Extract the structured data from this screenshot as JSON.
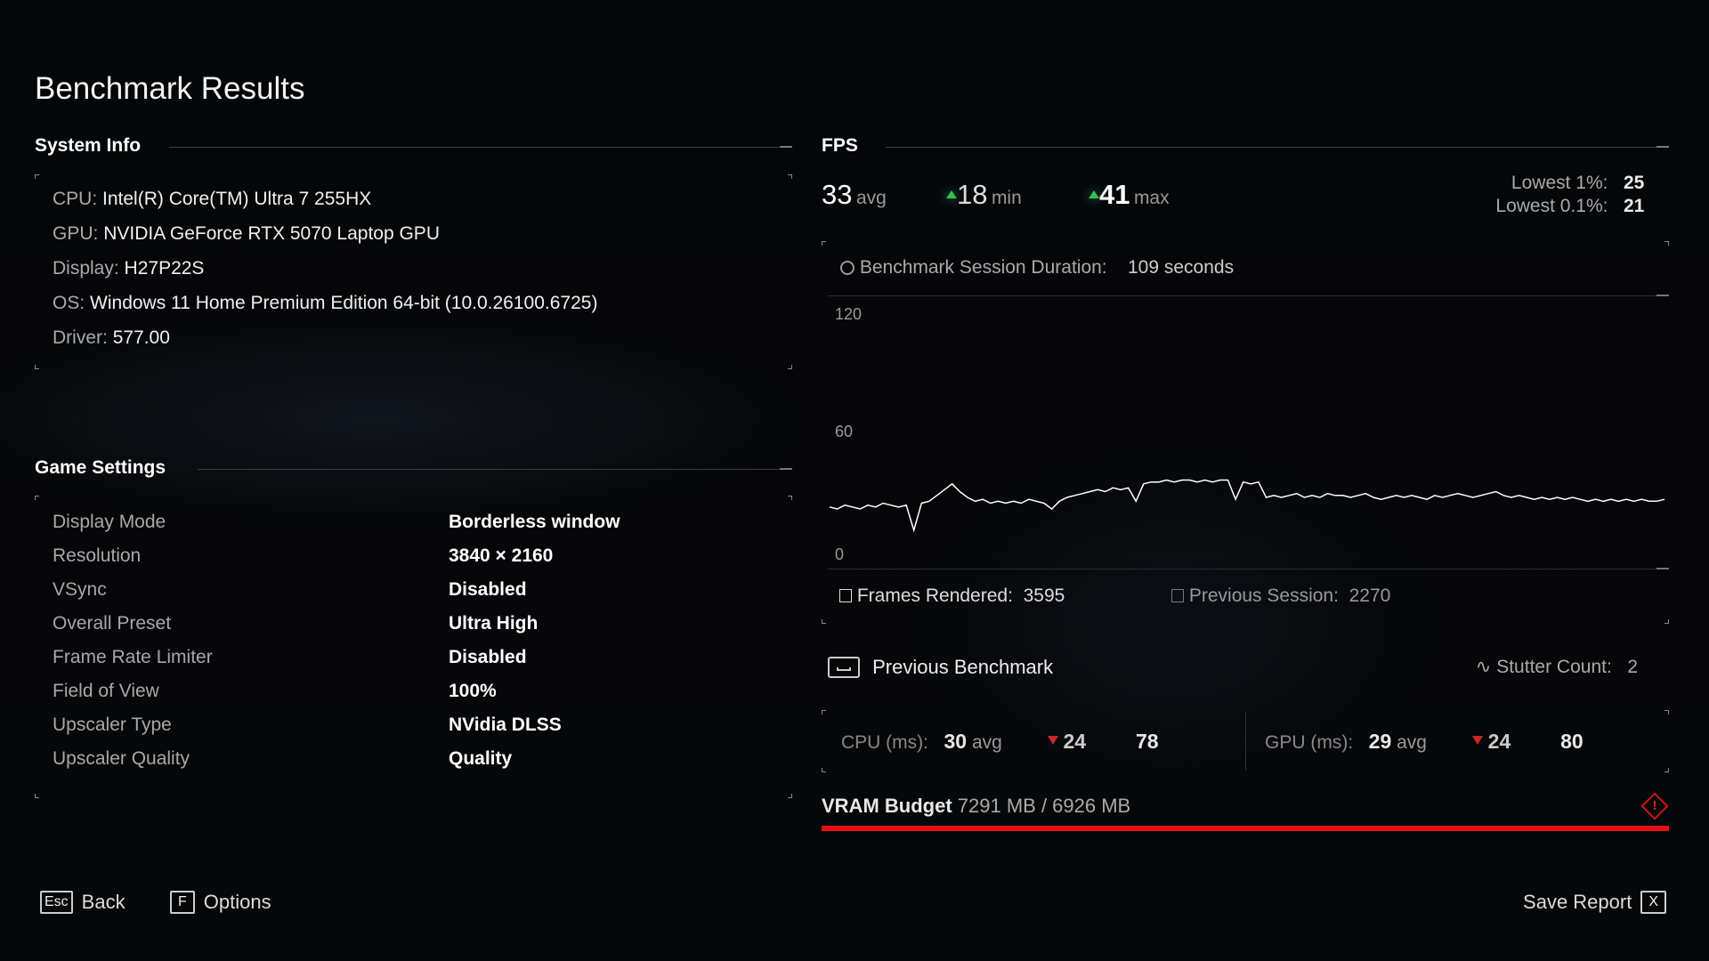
{
  "title": "Benchmark Results",
  "system_info": {
    "header": "System Info",
    "rows": [
      {
        "label": "CPU:",
        "value": "Intel(R) Core(TM) Ultra 7 255HX"
      },
      {
        "label": "GPU:",
        "value": "NVIDIA GeForce RTX 5070 Laptop GPU"
      },
      {
        "label": "Display:",
        "value": "H27P22S"
      },
      {
        "label": "OS:",
        "value": "Windows 11 Home Premium Edition 64-bit (10.0.26100.6725)"
      },
      {
        "label": "Driver:",
        "value": "577.00"
      }
    ]
  },
  "game_settings": {
    "header": "Game Settings",
    "rows": [
      {
        "label": "Display Mode",
        "value": "Borderless window"
      },
      {
        "label": "Resolution",
        "value": "3840 × 2160"
      },
      {
        "label": "VSync",
        "value": "Disabled"
      },
      {
        "label": "Overall Preset",
        "value": "Ultra High"
      },
      {
        "label": "Frame Rate Limiter",
        "value": "Disabled"
      },
      {
        "label": "Field of View",
        "value": "100%"
      },
      {
        "label": "Upscaler Type",
        "value": "NVidia DLSS"
      },
      {
        "label": "Upscaler Quality",
        "value": "Quality"
      }
    ]
  },
  "fps": {
    "header": "FPS",
    "avg": "33",
    "avg_label": "avg",
    "min": "18",
    "min_label": "min",
    "max": "41",
    "max_label": "max",
    "lowest1_label": "Lowest 1%:",
    "lowest1": "25",
    "lowest01_label": "Lowest 0.1%:",
    "lowest01": "21",
    "duration_label": "Benchmark Session Duration:",
    "duration": "109 seconds",
    "frames_label": "Frames Rendered:",
    "frames": "3595",
    "prev_label": "Previous Session:",
    "prev": "2270"
  },
  "chart_data": {
    "type": "line",
    "ylim": [
      0,
      120
    ],
    "yticks": [
      "120",
      "60",
      "0"
    ],
    "grid": false,
    "color": "#ffffff",
    "values": [
      25,
      24,
      26,
      25,
      24,
      26,
      25,
      27,
      26,
      25,
      26,
      13,
      27,
      28,
      31,
      34,
      37,
      33,
      30,
      28,
      29,
      27,
      28,
      27,
      28,
      27,
      29,
      28,
      27,
      24,
      28,
      30,
      31,
      32,
      33,
      34,
      33,
      35,
      34,
      35,
      28,
      37,
      38,
      38,
      39,
      38,
      39,
      39,
      38,
      39,
      38,
      39,
      39,
      29,
      38,
      37,
      38,
      30,
      31,
      30,
      31,
      32,
      30,
      31,
      30,
      32,
      31,
      31,
      30,
      31,
      32,
      30,
      29,
      30,
      31,
      30,
      31,
      30,
      29,
      31,
      30,
      31,
      32,
      31,
      30,
      31,
      32,
      33,
      31,
      30,
      31,
      30,
      29,
      30,
      29,
      30,
      29,
      30,
      29,
      28,
      29,
      28,
      29,
      28,
      29,
      28,
      29,
      28,
      28,
      29
    ]
  },
  "previous_benchmark": {
    "label": "Previous Benchmark",
    "stutter_label": "Stutter Count:",
    "stutter": "2"
  },
  "cpu": {
    "label": "CPU (ms):",
    "avg": "30",
    "avg_label": "avg",
    "low": "24",
    "high": "78"
  },
  "gpu": {
    "label": "GPU (ms):",
    "avg": "29",
    "avg_label": "avg",
    "low": "24",
    "high": "80"
  },
  "vram": {
    "label": "VRAM Budget",
    "value": "7291 MB / 6926 MB",
    "percent": 105,
    "color": "#e81010"
  },
  "footer": {
    "back_key": "Esc",
    "back": "Back",
    "options_key": "F",
    "options": "Options",
    "save": "Save Report",
    "save_key": "X"
  }
}
